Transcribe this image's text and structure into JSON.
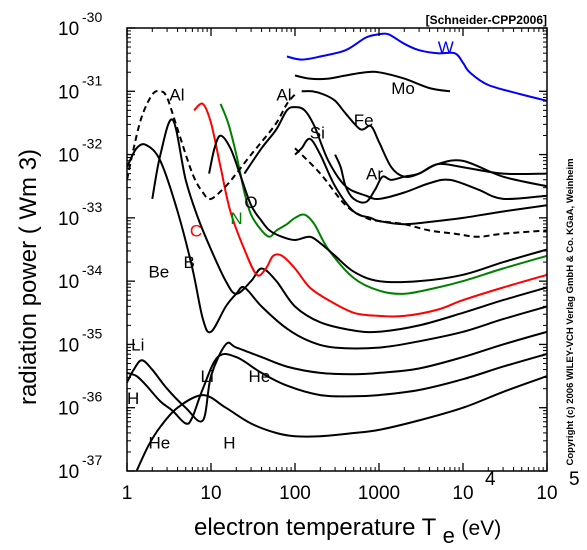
{
  "chart_data": {
    "type": "line",
    "source": "[Schneider-CPP2006]",
    "copyright": "Copyright (c) 2006 WILEY-VCH Verlag GmbH & Co. KGaA, Weinheim",
    "xaxis": {
      "label_main": "electron temperature T",
      "label_sub": "e",
      "label_unit": "(eV)",
      "scale": "log",
      "xlim": [
        1,
        100000
      ],
      "ticks": [
        {
          "value": 1,
          "base": "1",
          "exp": ""
        },
        {
          "value": 10,
          "base": "10",
          "exp": ""
        },
        {
          "value": 100,
          "base": "100",
          "exp": ""
        },
        {
          "value": 1000,
          "base": "1000",
          "exp": ""
        },
        {
          "value": 10000,
          "base": "10",
          "exp": "4"
        },
        {
          "value": 100000,
          "base": "10",
          "exp": "5"
        }
      ]
    },
    "yaxis": {
      "label": "radiation power  ( Wm 3)",
      "scale": "log",
      "ylim_exp": [
        -37,
        -30
      ],
      "ticks": [
        {
          "exp": -30,
          "base": "10",
          "sup": "-30"
        },
        {
          "exp": -31,
          "base": "10",
          "sup": "-31"
        },
        {
          "exp": -32,
          "base": "10",
          "sup": "-32"
        },
        {
          "exp": -33,
          "base": "10",
          "sup": "-33"
        },
        {
          "exp": -34,
          "base": "10",
          "sup": "-34"
        },
        {
          "exp": -35,
          "base": "10",
          "sup": "-35"
        },
        {
          "exp": -36,
          "base": "10",
          "sup": "-36"
        },
        {
          "exp": -37,
          "base": "10",
          "sup": "-37"
        }
      ]
    },
    "grid": false,
    "colors": {
      "default": "#000000",
      "W": "#0000ff",
      "C": "#ff0000",
      "N": "#008000"
    },
    "series": [
      {
        "name": "H",
        "color": "#000000",
        "dash": false,
        "x": [
          1.3,
          1.8,
          2.5,
          4,
          8,
          15,
          30,
          60,
          100,
          200,
          500,
          1000,
          3000,
          10000,
          30000,
          100000
        ],
        "y": [
          -37,
          -36.6,
          -36.3,
          -36.0,
          -35.8,
          -36.0,
          -36.25,
          -36.4,
          -36.45,
          -36.45,
          -36.4,
          -36.35,
          -36.2,
          -36.0,
          -35.75,
          -35.5
        ]
      },
      {
        "name": "He",
        "color": "#000000",
        "dash": false,
        "x": [
          1,
          1.3,
          1.7,
          2.5,
          3.5,
          5,
          6,
          8,
          12,
          20,
          40,
          80,
          200,
          500,
          1000,
          3000,
          10000,
          30000,
          100000
        ],
        "y": [
          -35.45,
          -35.5,
          -35.65,
          -35.9,
          -36.05,
          -36.25,
          -36.15,
          -35.7,
          -35.2,
          -35.2,
          -35.45,
          -35.65,
          -35.8,
          -35.82,
          -35.8,
          -35.72,
          -35.55,
          -35.35,
          -35.15
        ]
      },
      {
        "name": "Li",
        "color": "#000000",
        "dash": false,
        "x": [
          1,
          1.2,
          1.5,
          2,
          3,
          5,
          8,
          10,
          15,
          20,
          40,
          80,
          200,
          500,
          1000,
          3000,
          10000,
          30000,
          100000
        ],
        "y": [
          -35.6,
          -35.4,
          -35.25,
          -35.4,
          -35.7,
          -36.0,
          -36.2,
          -35.5,
          -35.0,
          -35.05,
          -35.2,
          -35.35,
          -35.45,
          -35.47,
          -35.45,
          -35.38,
          -35.2,
          -35.0,
          -34.8
        ]
      },
      {
        "name": "Be",
        "color": "#000000",
        "dash": false,
        "x": [
          1,
          1.3,
          1.7,
          2.5,
          4,
          6,
          8,
          10,
          15,
          20,
          25,
          40,
          80,
          150,
          300,
          1000,
          3000,
          10000,
          30000,
          100000
        ],
        "y": [
          -32.2,
          -31.9,
          -31.85,
          -32.1,
          -32.9,
          -33.8,
          -34.6,
          -34.8,
          -34.4,
          -34.2,
          -34.1,
          -34.4,
          -34.75,
          -34.95,
          -35.05,
          -35.05,
          -34.95,
          -34.8,
          -34.6,
          -34.4
        ]
      },
      {
        "name": "B",
        "color": "#000000",
        "dash": false,
        "x": [
          2,
          2.5,
          3.5,
          5,
          7,
          10,
          15,
          20,
          30,
          40,
          60,
          100,
          200,
          500,
          1000,
          3000,
          10000,
          30000,
          100000
        ],
        "y": [
          -32.7,
          -32.0,
          -31.45,
          -32.4,
          -33.0,
          -33.5,
          -34.0,
          -34.2,
          -34.0,
          -33.8,
          -34.0,
          -34.4,
          -34.65,
          -34.78,
          -34.8,
          -34.7,
          -34.5,
          -34.3,
          -34.1
        ]
      },
      {
        "name": "C",
        "color": "#ff0000",
        "dash": false,
        "x": [
          6.3,
          8,
          10,
          13,
          17,
          25,
          35,
          45,
          55,
          70,
          100,
          150,
          250,
          500,
          1000,
          2000,
          5000,
          10000,
          30000,
          100000
        ],
        "y": [
          -31.3,
          -31.2,
          -31.5,
          -32.2,
          -32.9,
          -33.5,
          -33.9,
          -33.8,
          -33.6,
          -33.6,
          -33.8,
          -34.1,
          -34.3,
          -34.5,
          -34.55,
          -34.55,
          -34.45,
          -34.3,
          -34.1,
          -33.9
        ]
      },
      {
        "name": "N",
        "color": "#008000",
        "dash": false,
        "x": [
          13,
          16,
          20,
          25,
          30,
          40,
          50,
          60,
          80,
          100,
          130,
          170,
          250,
          500,
          1000,
          2000,
          5000,
          10000,
          30000,
          100000
        ],
        "y": [
          -31.2,
          -31.5,
          -32.0,
          -32.6,
          -32.95,
          -33.2,
          -33.3,
          -33.2,
          -33.1,
          -33.0,
          -32.95,
          -33.1,
          -33.5,
          -33.95,
          -34.15,
          -34.2,
          -34.1,
          -34.0,
          -33.8,
          -33.6
        ]
      },
      {
        "name": "O",
        "color": "#000000",
        "dash": false,
        "x": [
          9.5,
          11,
          13,
          17,
          22,
          30,
          40,
          50,
          70,
          100,
          150,
          200,
          300,
          500,
          1000,
          3000,
          10000,
          30000,
          100000
        ],
        "y": [
          -32.3,
          -31.9,
          -31.7,
          -31.9,
          -32.3,
          -32.8,
          -33.05,
          -33.2,
          -33.3,
          -33.35,
          -33.3,
          -33.4,
          -33.6,
          -33.85,
          -34.0,
          -34.0,
          -33.9,
          -33.7,
          -33.5
        ]
      },
      {
        "name": "Al-dashed",
        "color": "#000000",
        "dash": true,
        "x": [
          1,
          1.2,
          1.5,
          2,
          2.5,
          3,
          4,
          6,
          8,
          10,
          15,
          20,
          30,
          40,
          60,
          80,
          100
        ],
        "y": [
          -32.4,
          -31.9,
          -31.4,
          -31.05,
          -31.0,
          -31.1,
          -31.6,
          -32.3,
          -32.6,
          -32.7,
          -32.5,
          -32.3,
          -32.0,
          -31.8,
          -31.5,
          -31.2,
          -31.05
        ]
      },
      {
        "name": "Al-solid",
        "color": "#000000",
        "dash": false,
        "x": [
          25,
          40,
          60,
          80,
          100,
          130,
          170,
          250,
          400,
          700,
          1000,
          2000,
          4000,
          7000,
          15000,
          30000,
          100000
        ],
        "y": [
          -32.3,
          -31.9,
          -31.6,
          -31.3,
          -31.25,
          -31.3,
          -31.55,
          -32.1,
          -32.5,
          -32.65,
          -32.7,
          -32.6,
          -32.45,
          -32.4,
          -32.55,
          -32.7,
          -32.65
        ]
      },
      {
        "name": "Si",
        "color": "#000000",
        "dash": false,
        "x": [
          100,
          120,
          150,
          200,
          300,
          500,
          800,
          1000,
          2000,
          5000,
          10000,
          30000,
          100000
        ],
        "y": [
          -32.0,
          -31.9,
          -31.75,
          -32.0,
          -32.5,
          -32.9,
          -33.0,
          -33.05,
          -33.1,
          -33.05,
          -33.0,
          -32.9,
          -32.8
        ]
      },
      {
        "name": "Si-dashed",
        "color": "#000000",
        "dash": true,
        "x": [
          100,
          200,
          400,
          700,
          1000,
          2000,
          4000,
          8000,
          15000,
          30000,
          100000
        ],
        "y": [
          -31.9,
          -32.3,
          -32.8,
          -33.0,
          -33.05,
          -33.1,
          -33.2,
          -33.25,
          -33.3,
          -33.25,
          -33.2
        ]
      },
      {
        "name": "Ar",
        "color": "#000000",
        "dash": false,
        "x": [
          300,
          350,
          400,
          500,
          700,
          900,
          1100,
          1400,
          2000,
          3000,
          5000,
          10000,
          30000,
          100000
        ],
        "y": [
          -32.0,
          -32.2,
          -32.5,
          -32.7,
          -32.75,
          -32.55,
          -32.35,
          -32.4,
          -32.35,
          -32.3,
          -32.15,
          -32.2,
          -32.3,
          -32.3
        ]
      },
      {
        "name": "Fe",
        "color": "#000000",
        "dash": false,
        "x": [
          120,
          160,
          220,
          300,
          400,
          600,
          800,
          1000,
          1400,
          2000,
          3000,
          5000,
          10000,
          30000,
          100000
        ],
        "y": [
          -31.0,
          -31.0,
          -31.05,
          -31.15,
          -31.35,
          -31.6,
          -31.55,
          -31.8,
          -32.2,
          -32.35,
          -32.3,
          -32.15,
          -32.1,
          -32.35,
          -32.5
        ]
      },
      {
        "name": "Mo",
        "color": "#000000",
        "dash": false,
        "x": [
          100,
          150,
          250,
          400,
          700,
          1000,
          2000,
          4000,
          7000
        ],
        "y": [
          -30.75,
          -30.8,
          -30.8,
          -30.75,
          -30.7,
          -30.7,
          -30.8,
          -30.95,
          -31.0
        ]
      },
      {
        "name": "W",
        "color": "#0000ff",
        "dash": false,
        "x": [
          80,
          120,
          200,
          400,
          700,
          1000,
          1300,
          2000,
          3000,
          5000,
          8000,
          10000,
          12000,
          20000,
          50000,
          100000
        ],
        "y": [
          -30.45,
          -30.5,
          -30.45,
          -30.35,
          -30.15,
          -30.1,
          -30.1,
          -30.25,
          -30.35,
          -30.4,
          -30.4,
          -30.55,
          -30.7,
          -30.9,
          -31.05,
          -31.15
        ]
      }
    ],
    "labels": [
      {
        "text": "Al",
        "x": 3.2,
        "y": -31.05,
        "color": "#000000"
      },
      {
        "text": "Al",
        "x": 60,
        "y": -31.05,
        "color": "#000000"
      },
      {
        "text": "Si",
        "x": 150,
        "y": -31.65,
        "color": "#000000"
      },
      {
        "text": "Fe",
        "x": 500,
        "y": -31.45,
        "color": "#000000"
      },
      {
        "text": "Mo",
        "x": 1400,
        "y": -30.95,
        "color": "#000000"
      },
      {
        "text": "W",
        "x": 5000,
        "y": -30.3,
        "color": "#0000ff"
      },
      {
        "text": "Ar",
        "x": 700,
        "y": -32.3,
        "color": "#000000"
      },
      {
        "text": "O",
        "x": 25,
        "y": -32.75,
        "color": "#000000"
      },
      {
        "text": "N",
        "x": 17,
        "y": -33.0,
        "color": "#008000"
      },
      {
        "text": "C",
        "x": 5.6,
        "y": -33.2,
        "color": "#ff0000"
      },
      {
        "text": "B",
        "x": 4.7,
        "y": -33.7,
        "color": "#000000"
      },
      {
        "text": "Be",
        "x": 1.8,
        "y": -33.85,
        "color": "#000000"
      },
      {
        "text": "Li",
        "x": 1.12,
        "y": -35.0,
        "color": "#000000"
      },
      {
        "text": "Li",
        "x": 7.5,
        "y": -35.5,
        "color": "#000000"
      },
      {
        "text": "He",
        "x": 28,
        "y": -35.5,
        "color": "#000000"
      },
      {
        "text": "H",
        "x": 1.0,
        "y": -35.85,
        "color": "#000000"
      },
      {
        "text": "He",
        "x": 1.8,
        "y": -36.55,
        "color": "#000000"
      },
      {
        "text": "H",
        "x": 14,
        "y": -36.55,
        "color": "#000000"
      }
    ]
  }
}
